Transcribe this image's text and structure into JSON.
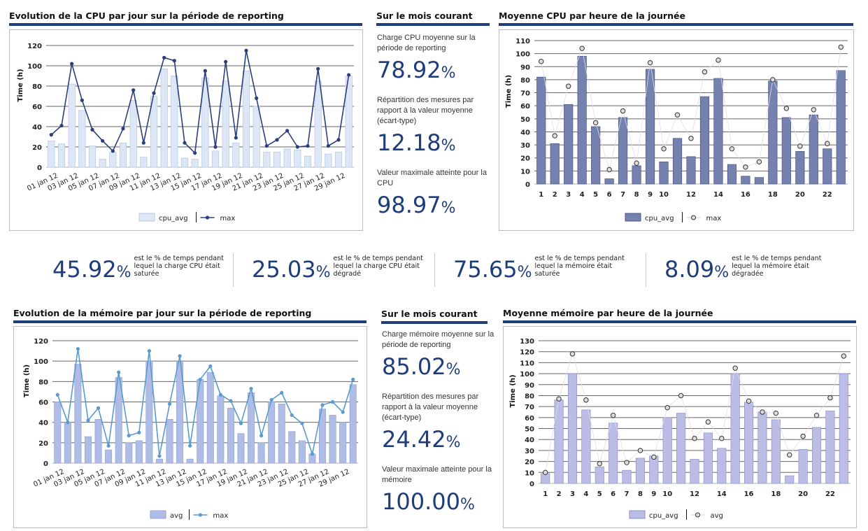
{
  "cpu_daily_title": "Evolution de la CPU par jour sur la période de reporting",
  "cpu_hourly_title": "Moyenne CPU par heure de la journée",
  "mem_daily_title": "Evolution de la mémoire par jour sur la période de reporting",
  "mem_hourly_title": "Moyenne mémoire par heure de la journée",
  "cpu_month": {
    "title": "Sur le mois courant",
    "items": [
      {
        "label": "Charge CPU moyenne sur la période de reporting",
        "value": "78.92",
        "unit": "%"
      },
      {
        "label": "Répartition des mesures par rapport à la valeur moyenne (écart-type)",
        "value": "12.18",
        "unit": "%"
      },
      {
        "label": "Valeur maximale atteinte pour la CPU",
        "value": "98.97",
        "unit": "%"
      }
    ]
  },
  "mem_month": {
    "title": "Sur le mois courant",
    "items": [
      {
        "label": "Charge mémoire moyenne sur la période de reporting",
        "value": "85.02",
        "unit": "%"
      },
      {
        "label": "Répartition des mesures par rapport à la valeur moyenne (écart-type)",
        "value": "24.42",
        "unit": "%"
      },
      {
        "label": "Valeur maximale atteinte pour la mémoire",
        "value": "100.00",
        "unit": "%"
      }
    ]
  },
  "stats": [
    {
      "value": "45.92",
      "unit": "%",
      "text": "est le % de temps pendant lequel la charge CPU était saturée"
    },
    {
      "value": "25.03",
      "unit": "%",
      "text": "est le % de temps pendant lequel la charge CPU était dégradé"
    },
    {
      "value": "75.65",
      "unit": "%",
      "text": "est le % de temps pendant lequel la mémoire était saturée"
    },
    {
      "value": "8.09",
      "unit": "%",
      "text": "est le % de temps pendant lequel la mémoire était dégradée"
    }
  ],
  "chart_data": [
    {
      "type": "bar+line",
      "ylabel": "Time (h)",
      "ylim": [
        0,
        120
      ],
      "yticks": [
        0,
        20,
        40,
        60,
        80,
        100,
        120
      ],
      "categories": [
        "01 jan 12",
        "02 jan 12",
        "03 jan 12",
        "04 jan 12",
        "05 jan 12",
        "06 jan 12",
        "07 jan 12",
        "08 jan 12",
        "09 jan 12",
        "10 jan 12",
        "11 jan 12",
        "12 jan 12",
        "13 jan 12",
        "14 jan 12",
        "15 jan 12",
        "16 jan 12",
        "17 jan 12",
        "18 jan 12",
        "19 jan 12",
        "20 jan 12",
        "21 jan 12",
        "22 jan 12",
        "23 jan 12",
        "24 jan 12",
        "25 jan 12",
        "26 jan 12",
        "27 jan 12",
        "28 jan 12",
        "29 jan 12",
        "30 jan 12"
      ],
      "label_every": 2,
      "series": [
        {
          "name": "cpu_avg",
          "kind": "bar",
          "values": [
            26,
            23,
            82,
            56,
            21,
            8,
            15,
            24,
            66,
            10,
            70,
            97,
            90,
            9,
            8,
            88,
            16,
            85,
            24,
            95,
            60,
            15,
            15,
            18,
            17,
            11,
            85,
            13,
            15,
            90
          ]
        },
        {
          "name": "max",
          "kind": "line",
          "values": [
            32,
            41,
            102,
            66,
            37,
            26,
            16,
            38,
            76,
            24,
            73,
            108,
            105,
            24,
            14,
            95,
            20,
            104,
            29,
            115,
            68,
            21,
            27,
            36,
            20,
            21,
            97,
            21,
            27,
            91
          ]
        }
      ]
    },
    {
      "type": "bar+points",
      "ylabel": "Time (h)",
      "ylim": [
        0,
        110
      ],
      "yticks": [
        0,
        10,
        20,
        30,
        40,
        50,
        60,
        70,
        80,
        90,
        100,
        110
      ],
      "categories": [
        "1",
        "2",
        "3",
        "4",
        "5",
        "6",
        "7",
        "8",
        "9",
        "10",
        "11",
        "12",
        "13",
        "14",
        "15",
        "16",
        "17",
        "18",
        "19",
        "20",
        "21",
        "22",
        "23"
      ],
      "shown_labels": [
        "1",
        "2",
        "3",
        "4",
        "5",
        "6",
        "7",
        "8",
        "9",
        "10",
        "12",
        "14",
        "16",
        "18",
        "20",
        "22"
      ],
      "series": [
        {
          "name": "cpu_avg",
          "kind": "bar",
          "values": [
            82,
            31,
            61,
            98,
            44,
            4,
            51,
            14,
            88,
            17,
            35,
            21,
            67,
            81,
            15,
            6,
            5,
            79,
            51,
            25,
            53,
            27,
            87
          ]
        },
        {
          "name": "max",
          "kind": "points",
          "values": [
            94,
            37,
            75,
            104,
            47,
            11,
            56,
            16,
            93,
            27,
            53,
            35,
            86,
            95,
            27,
            13,
            17,
            80,
            58,
            29,
            57,
            31,
            105
          ]
        }
      ]
    },
    {
      "type": "bar+line",
      "ylabel": "Time (h)",
      "ylim": [
        0,
        120
      ],
      "yticks": [
        0,
        20,
        40,
        60,
        80,
        100,
        120
      ],
      "categories": [
        "01 jan 12",
        "02 jan 12",
        "03 jan 12",
        "04 jan 12",
        "05 jan 12",
        "06 jan 12",
        "07 jan 12",
        "08 jan 12",
        "09 jan 12",
        "10 jan 12",
        "11 jan 12",
        "12 jan 12",
        "13 jan 12",
        "14 jan 12",
        "15 jan 12",
        "16 jan 12",
        "17 jan 12",
        "18 jan 12",
        "19 jan 12",
        "20 jan 12",
        "21 jan 12",
        "22 jan 12",
        "23 jan 12",
        "24 jan 12",
        "25 jan 12",
        "26 jan 12",
        "27 jan 12",
        "28 jan 12",
        "29 jan 12",
        "30 jan 12"
      ],
      "label_every": 2,
      "series": [
        {
          "name": "avg",
          "kind": "bar",
          "values": [
            60,
            40,
            97,
            26,
            43,
            13,
            84,
            20,
            22,
            100,
            4,
            43,
            99,
            4,
            82,
            89,
            66,
            54,
            29,
            69,
            20,
            60,
            58,
            31,
            22,
            9,
            53,
            47,
            40,
            77
          ]
        },
        {
          "name": "max",
          "kind": "line",
          "values": [
            67,
            40,
            112,
            42,
            54,
            17,
            89,
            27,
            30,
            110,
            7,
            58,
            105,
            17,
            82,
            95,
            67,
            61,
            39,
            73,
            27,
            62,
            69,
            47,
            39,
            9,
            57,
            60,
            50,
            82
          ]
        }
      ]
    },
    {
      "type": "bar+points",
      "ylabel": "Time (h)",
      "ylim": [
        0,
        130
      ],
      "yticks": [
        0,
        10,
        20,
        30,
        40,
        50,
        60,
        70,
        80,
        90,
        100,
        110,
        120,
        130
      ],
      "categories": [
        "1",
        "2",
        "3",
        "4",
        "5",
        "6",
        "7",
        "8",
        "9",
        "10",
        "11",
        "12",
        "13",
        "14",
        "15",
        "16",
        "17",
        "18",
        "19",
        "20",
        "21",
        "22",
        "23"
      ],
      "shown_labels": [
        "1",
        "2",
        "3",
        "4",
        "5",
        "6",
        "7",
        "8",
        "9",
        "10",
        "12",
        "14",
        "16",
        "18",
        "20",
        "22"
      ],
      "series": [
        {
          "name": "cpu_avg",
          "kind": "bar",
          "values": [
            9,
            76,
            100,
            67,
            15,
            55,
            12,
            23,
            25,
            60,
            64,
            22,
            46,
            32,
            100,
            74,
            65,
            58,
            7,
            31,
            51,
            66,
            100
          ]
        },
        {
          "name": "avg",
          "kind": "points",
          "values": [
            10,
            77,
            118,
            76,
            18,
            62,
            19,
            30,
            24,
            69,
            80,
            41,
            56,
            41,
            105,
            75,
            65,
            64,
            26,
            43,
            62,
            78,
            116
          ]
        }
      ]
    }
  ],
  "colors": {
    "navy": "#1f3d7a",
    "cpu_bar_light": "#dde6f5",
    "cpu_line": "#2b3f7c",
    "cpu_bar_dark": "#7582b0",
    "mem_bar": "#aebce6",
    "mem_line": "#5a9ad0",
    "mem_hour_bar": "#bcbde6"
  }
}
